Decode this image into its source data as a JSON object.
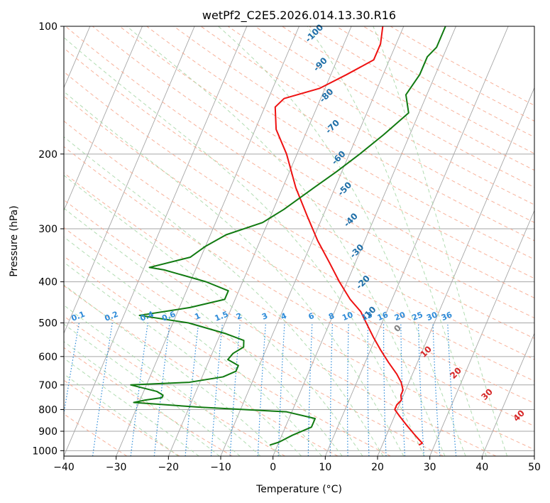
{
  "chart_data": {
    "type": "line",
    "title": "wetPf2_C2E5.2026.014.13.30.R16",
    "xlabel": "Temperature (°C)",
    "ylabel": "Pressure (hPa)",
    "xlim": [
      -40,
      50
    ],
    "ylim": [
      1030,
      100
    ],
    "y_scale": "log",
    "x_ticks": [
      -40,
      -30,
      -20,
      -10,
      0,
      10,
      20,
      30,
      40,
      50
    ],
    "x_tick_labels": [
      "−40",
      "−30",
      "−20",
      "−10",
      "0",
      "10",
      "20",
      "30",
      "40",
      "50"
    ],
    "y_ticks": [
      1000,
      900,
      800,
      700,
      600,
      500,
      400,
      300,
      200,
      100
    ],
    "y_tick_labels": [
      "1000",
      "900",
      "800",
      "700",
      "600",
      "500",
      "400",
      "300",
      "200",
      "100"
    ],
    "grid": true,
    "colors": {
      "temperature": "#ee1111",
      "dewpoint": "#117a11",
      "isotherm": "#a6a6a6",
      "dry_adiabat": "#f7a58a",
      "moist_adiabat": "#a8d8a8",
      "mixing_ratio": "#2e8bd8",
      "ccl_label": "#1f6fa8",
      "lcl_label": "#d62828",
      "zero_label": "#808080"
    },
    "series": [
      {
        "key": "temperature",
        "points": [
          [
            27,
            970
          ],
          [
            27.5,
            960
          ],
          [
            26.5,
            940
          ],
          [
            25,
            910
          ],
          [
            23,
            870
          ],
          [
            21,
            830
          ],
          [
            19.5,
            800
          ],
          [
            19.5,
            780
          ],
          [
            20,
            760
          ],
          [
            19.5,
            740
          ],
          [
            19.5,
            720
          ],
          [
            18.5,
            690
          ],
          [
            17,
            660
          ],
          [
            14.5,
            620
          ],
          [
            12,
            580
          ],
          [
            9.5,
            540
          ],
          [
            7,
            500
          ],
          [
            5,
            470
          ],
          [
            2,
            440
          ],
          [
            -1.5,
            400
          ],
          [
            -5,
            360
          ],
          [
            -9,
            320
          ],
          [
            -13,
            280
          ],
          [
            -17.5,
            240
          ],
          [
            -22,
            200
          ],
          [
            -26,
            175
          ],
          [
            -28,
            155
          ],
          [
            -27,
            148
          ],
          [
            -21,
            140
          ],
          [
            -17,
            130
          ],
          [
            -13,
            120
          ],
          [
            -13,
            110
          ],
          [
            -14,
            100
          ]
        ]
      },
      {
        "key": "dewpoint",
        "points": [
          [
            -1.5,
            970
          ],
          [
            0,
            955
          ],
          [
            2,
            920
          ],
          [
            5,
            880
          ],
          [
            5,
            860
          ],
          [
            5,
            840
          ],
          [
            -1,
            810
          ],
          [
            -18,
            790
          ],
          [
            -31,
            770
          ],
          [
            -29,
            760
          ],
          [
            -26,
            750
          ],
          [
            -26,
            740
          ],
          [
            -27.5,
            725
          ],
          [
            -33,
            700
          ],
          [
            -22,
            690
          ],
          [
            -16,
            670
          ],
          [
            -14,
            650
          ],
          [
            -14,
            630
          ],
          [
            -16.5,
            610
          ],
          [
            -16,
            590
          ],
          [
            -14.5,
            570
          ],
          [
            -15,
            550
          ],
          [
            -19,
            530
          ],
          [
            -27,
            500
          ],
          [
            -37,
            480
          ],
          [
            -28,
            460
          ],
          [
            -22,
            440
          ],
          [
            -22,
            420
          ],
          [
            -27,
            400
          ],
          [
            -36,
            375
          ],
          [
            -39,
            370
          ],
          [
            -32,
            350
          ],
          [
            -30,
            330
          ],
          [
            -27,
            310
          ],
          [
            -21,
            290
          ],
          [
            -18,
            270
          ],
          [
            -14,
            240
          ],
          [
            -11,
            220
          ],
          [
            -8,
            200
          ],
          [
            -5,
            180
          ],
          [
            -2,
            160
          ],
          [
            -4,
            145
          ],
          [
            -3,
            130
          ],
          [
            -3,
            118
          ],
          [
            -2,
            112
          ],
          [
            -2,
            100
          ]
        ]
      }
    ],
    "mixing_ratio_labels": [
      "0.1",
      "0.2",
      "0.4",
      "0.6",
      "1",
      "1.5",
      "2",
      "3",
      "4",
      "6",
      "8",
      "10",
      "13",
      "16",
      "20",
      "25",
      "30",
      "36"
    ],
    "mixing_ratio_values": [
      0.1,
      0.2,
      0.4,
      0.6,
      1,
      1.5,
      2,
      3,
      4,
      6,
      8,
      10,
      13,
      16,
      20,
      25,
      30,
      36
    ],
    "upper_labels": [
      "-100",
      "-90",
      "-80",
      "-70",
      "-60",
      "-50",
      "-40",
      "-30",
      "-20",
      "-10"
    ],
    "upper_label_values": [
      -100,
      -90,
      -80,
      -70,
      -60,
      -50,
      -40,
      -30,
      -20,
      -10
    ],
    "lower_labels": [
      "0",
      "10",
      "20",
      "30",
      "40"
    ],
    "lower_label_values": [
      0,
      10,
      20,
      30,
      40
    ]
  }
}
